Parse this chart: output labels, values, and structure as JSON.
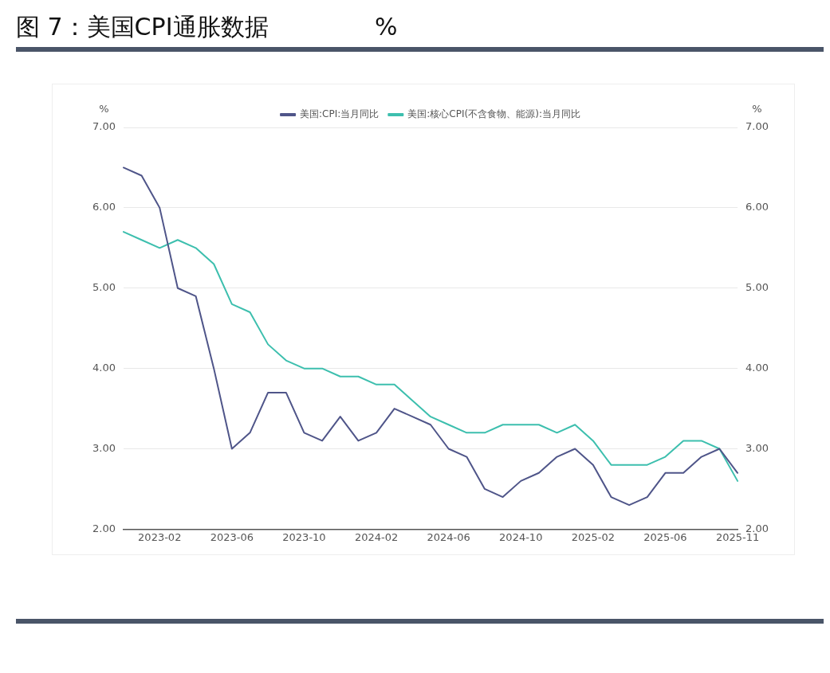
{
  "chart_data": {
    "type": "line",
    "title": "图 7：美国CPI通胀数据              %",
    "categories": [
      null,
      null,
      "2023-02",
      null,
      null,
      null,
      "2023-06",
      null,
      null,
      null,
      "2023-10",
      null,
      null,
      null,
      "2024-02",
      null,
      null,
      null,
      "2024-06",
      null,
      null,
      null,
      "2024-10",
      null,
      null,
      null,
      "2025-02",
      null,
      null,
      null,
      "2025-06",
      null,
      null,
      null,
      "2025-11"
    ],
    "series": [
      {
        "name": "美国:CPI:当月同比",
        "color": "#4f5589",
        "values": [
          6.5,
          6.4,
          6.0,
          5.0,
          4.9,
          4.0,
          3.0,
          3.2,
          3.7,
          3.7,
          3.2,
          3.1,
          3.4,
          3.1,
          3.2,
          3.5,
          3.4,
          3.3,
          3.0,
          2.9,
          2.5,
          2.4,
          2.6,
          2.7,
          2.9,
          3.0,
          2.8,
          2.4,
          2.3,
          2.4,
          2.7,
          2.7,
          2.9,
          3.0,
          2.7
        ]
      },
      {
        "name": "美国:核心CPI(不含食物、能源):当月同比",
        "color": "#3dbfae",
        "values": [
          5.7,
          5.6,
          5.5,
          5.6,
          5.5,
          5.3,
          4.8,
          4.7,
          4.3,
          4.1,
          4.0,
          4.0,
          3.9,
          3.9,
          3.8,
          3.8,
          3.6,
          3.4,
          3.3,
          3.2,
          3.2,
          3.3,
          3.3,
          3.3,
          3.2,
          3.3,
          3.1,
          2.8,
          2.8,
          2.8,
          2.9,
          3.1,
          3.1,
          3.0,
          2.6
        ]
      }
    ],
    "ylabel": "%",
    "y2label": "%",
    "ylim": [
      2,
      7
    ],
    "yticks": [
      {
        "value": 2,
        "label": "2.00"
      },
      {
        "value": 3,
        "label": "3.00"
      },
      {
        "value": 4,
        "label": "4.00"
      },
      {
        "value": 5,
        "label": "5.00"
      },
      {
        "value": 6,
        "label": "6.00"
      },
      {
        "value": 7,
        "label": "7.00"
      }
    ],
    "y2lim": [
      2,
      7
    ],
    "y2ticks": [
      {
        "value": 2,
        "label": "2.00"
      },
      {
        "value": 3,
        "label": "3.00"
      },
      {
        "value": 4,
        "label": "4.00"
      },
      {
        "value": 5,
        "label": "5.00"
      },
      {
        "value": 6,
        "label": "6.00"
      },
      {
        "value": 7,
        "label": "7.00"
      }
    ],
    "grid": "y",
    "legend": "top",
    "marker": "none",
    "line_style": "solid"
  }
}
